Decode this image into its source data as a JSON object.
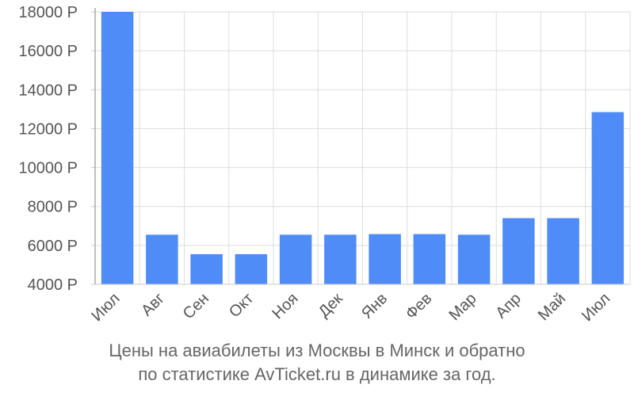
{
  "chart_data": {
    "type": "bar",
    "categories": [
      "Июл",
      "Авг",
      "Сен",
      "Окт",
      "Ноя",
      "Дек",
      "Янв",
      "Фев",
      "Мар",
      "Апр",
      "Май",
      "Июл"
    ],
    "values": [
      18000,
      6550,
      5550,
      5550,
      6550,
      6550,
      6580,
      6580,
      6550,
      7400,
      7400,
      12850
    ],
    "ylim": [
      4000,
      18000
    ],
    "yticks": [
      4000,
      6000,
      8000,
      10000,
      12000,
      14000,
      16000,
      18000
    ],
    "ytick_suffix": " Р",
    "grid": true,
    "bar_color": "#4f8cf7",
    "title": "Цены на авиабилеты из Москвы в Минск и обратно",
    "subtitle": "по статистике AvTicket.ru в динамике за год."
  }
}
